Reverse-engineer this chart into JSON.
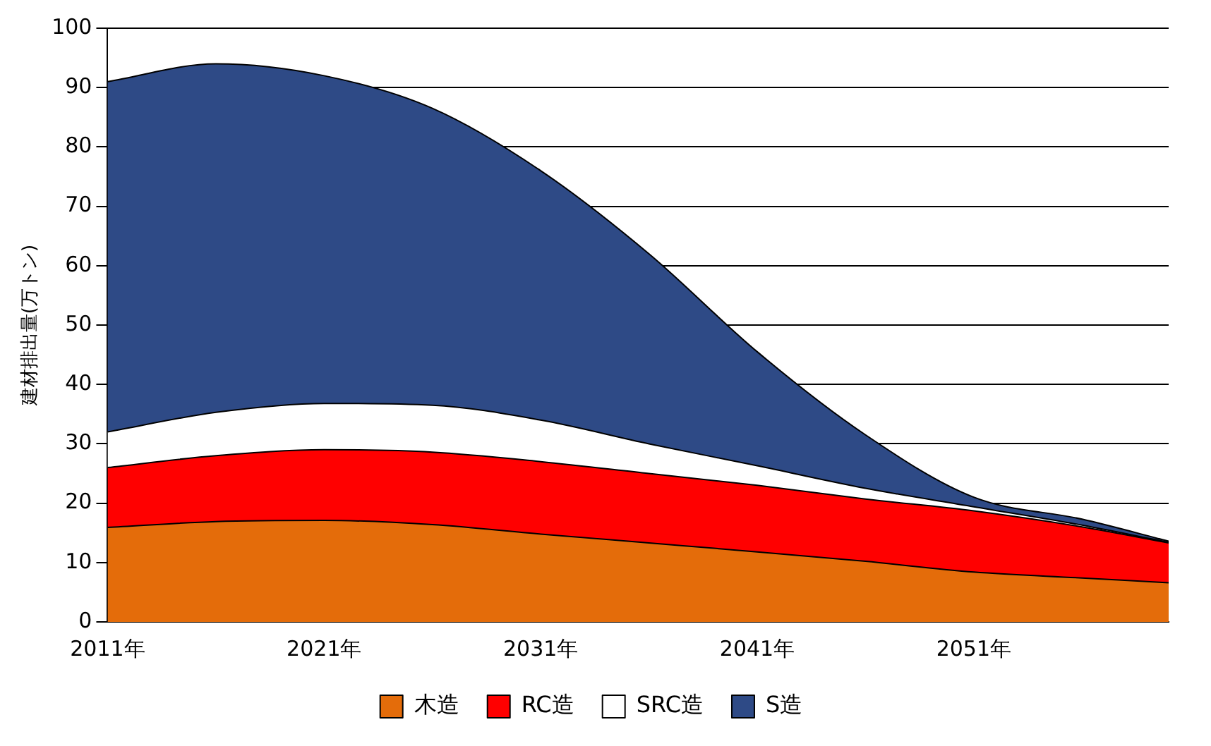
{
  "chart_data": {
    "type": "area",
    "ylabel": "建材排出量(万トン)",
    "stacked": true,
    "grid": "y",
    "legend": "bottom",
    "x": [
      2011,
      2016,
      2021,
      2026,
      2031,
      2036,
      2041,
      2046,
      2051,
      2056,
      2060
    ],
    "xlim": [
      2011,
      2060
    ],
    "xticks": [
      {
        "value": 2011,
        "label": "2011年"
      },
      {
        "value": 2021,
        "label": "2021年"
      },
      {
        "value": 2031,
        "label": "2031年"
      },
      {
        "value": 2041,
        "label": "2041年"
      },
      {
        "value": 2051,
        "label": "2051年"
      }
    ],
    "ylim": [
      0,
      100
    ],
    "yticks": [
      0,
      10,
      20,
      30,
      40,
      50,
      60,
      70,
      80,
      90,
      100
    ],
    "series": [
      {
        "name": "木造",
        "color": "#e46c0a",
        "values": [
          15.9,
          16.9,
          17.1,
          16.4,
          14.8,
          13.3,
          11.8,
          10.2,
          8.4,
          7.4,
          6.6
        ]
      },
      {
        "name": "RC造",
        "color": "#ff0000",
        "values": [
          10.1,
          11.1,
          11.9,
          12.2,
          12.2,
          11.7,
          11.2,
          10.5,
          10.3,
          8.6,
          6.7
        ]
      },
      {
        "name": "SRC造",
        "color": "#ffffff",
        "values": [
          6,
          7.3,
          7.8,
          7.9,
          7,
          5,
          3.3,
          1.8,
          0.7,
          0.3,
          0.1
        ]
      },
      {
        "name": "S造",
        "color": "#2e4a86",
        "values": [
          59,
          58.7,
          55.2,
          50,
          42,
          32,
          19.2,
          9,
          1.6,
          1,
          0.2
        ]
      }
    ]
  }
}
